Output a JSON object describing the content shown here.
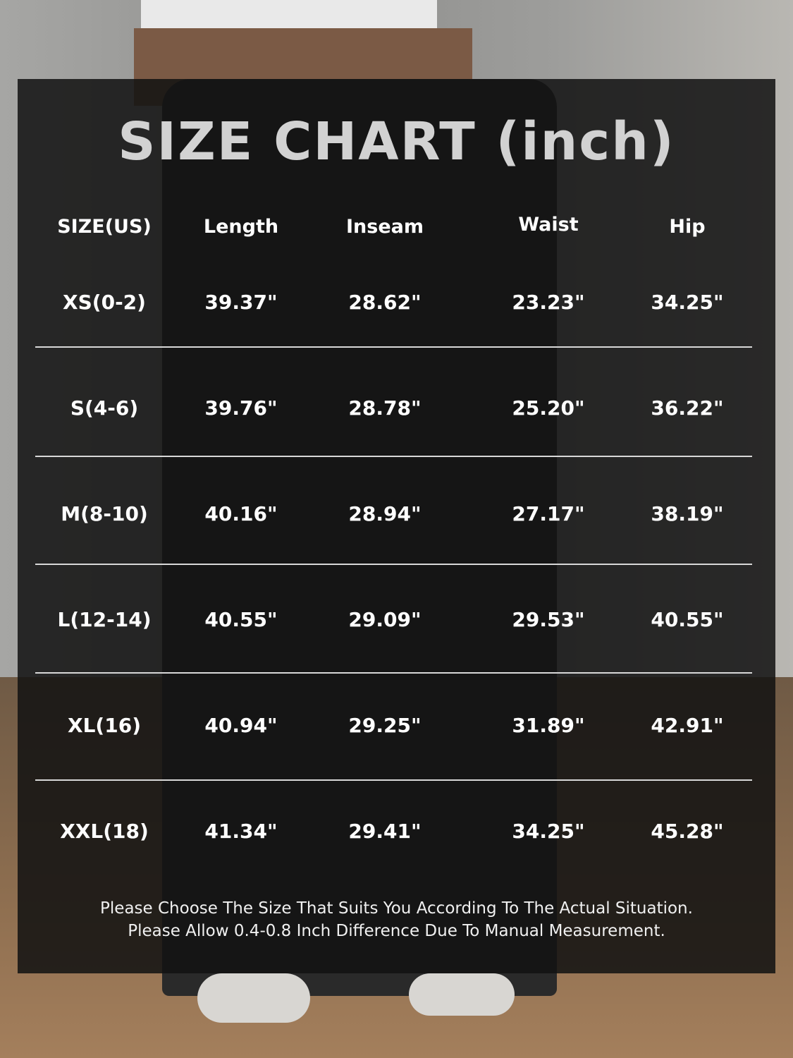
{
  "title": "SIZE CHART (inch)",
  "headers": [
    "SIZE(US)",
    "Length",
    "Inseam",
    "Waist",
    "Hip"
  ],
  "rows": [
    [
      "XS(0-2)",
      "39.37\"",
      "28.62\"",
      "23.23\"",
      "34.25\""
    ],
    [
      "S(4-6)",
      "39.76\"",
      "28.78\"",
      "25.20\"",
      "36.22\""
    ],
    [
      "M(8-10)",
      "40.16\"",
      "28.94\"",
      "27.17\"",
      "38.19\""
    ],
    [
      "L(12-14)",
      "40.55\"",
      "29.09\"",
      "29.53\"",
      "40.55\""
    ],
    [
      "XL(16)",
      "40.94\"",
      "29.25\"",
      "31.89\"",
      "42.91\""
    ],
    [
      "XXL(18)",
      "41.34\"",
      "29.41\"",
      "34.25\"",
      "45.28\""
    ]
  ],
  "notes": [
    "Please Choose The Size That Suits You According To The Actual Situation.",
    "Please Allow 0.4-0.8 Inch Difference Due To Manual Measurement."
  ]
}
